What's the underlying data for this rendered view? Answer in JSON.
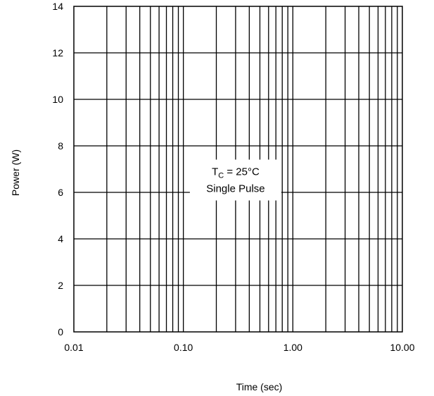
{
  "chart_data": {
    "type": "line",
    "title": "",
    "xlabel": "Time (sec)",
    "ylabel": "Power (W)",
    "x_scale": "log",
    "xlim": [
      0.01,
      10
    ],
    "ylim": [
      0,
      14
    ],
    "x_ticks": [
      {
        "value": 0.01,
        "label": "0.01"
      },
      {
        "value": 0.1,
        "label": "0.10"
      },
      {
        "value": 1,
        "label": "1.00"
      },
      {
        "value": 10,
        "label": "10.00"
      }
    ],
    "y_ticks": [
      {
        "value": 0,
        "label": "0"
      },
      {
        "value": 2,
        "label": "2"
      },
      {
        "value": 4,
        "label": "4"
      },
      {
        "value": 6,
        "label": "6"
      },
      {
        "value": 8,
        "label": "8"
      },
      {
        "value": 10,
        "label": "10"
      },
      {
        "value": 12,
        "label": "12"
      },
      {
        "value": 14,
        "label": "14"
      }
    ],
    "grid": true,
    "series": [],
    "annotation": {
      "line1_main": "T",
      "line1_sub": "C",
      "line1_rest": " = 25°C",
      "line2": "Single Pulse",
      "x": 0.3,
      "y": 6.5
    }
  }
}
